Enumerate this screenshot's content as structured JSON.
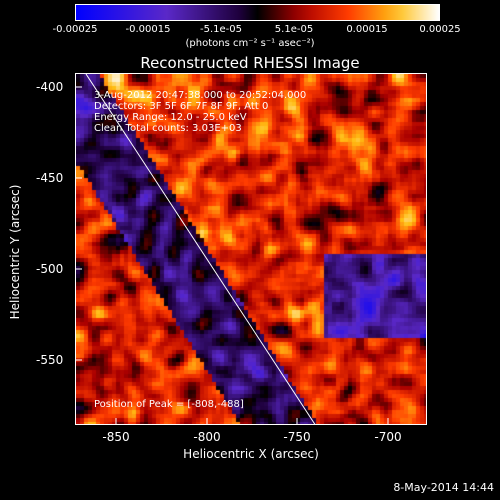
{
  "colorbar": {
    "ticks": [
      "-0.00025",
      "-0.00015",
      "-5.1e-05",
      "5.1e-05",
      "0.00015",
      "0.00025"
    ],
    "units": "(photons cm⁻² s⁻¹ asec⁻²)"
  },
  "title": "Reconstructed RHESSI Image",
  "info": {
    "time": "3-Aug-2012 20:47:38.000 to 20:52:04.000",
    "detectors": "Detectors: 3F 5F 6F 7F 8F 9F, Att 0",
    "energy": "Energy Range: 12.0 - 25.0 keV",
    "clean": "Clean    Total counts: 3.03E+03",
    "peak": "Position of Peak = [-808,-488]"
  },
  "axes": {
    "x_title": "Heliocentric X (arcsec)",
    "y_title": "Heliocentric Y (arcsec)",
    "x_ticks": [
      "-850",
      "-800",
      "-750",
      "-700"
    ],
    "y_ticks": [
      "-400",
      "-450",
      "-500",
      "-550"
    ],
    "xlim": [
      -870,
      -680
    ],
    "ylim": [
      -585,
      -392
    ]
  },
  "footer": {
    "date": "8-May-2014 14:44"
  },
  "colors": {
    "background": "#000000",
    "text": "#ffffff"
  }
}
